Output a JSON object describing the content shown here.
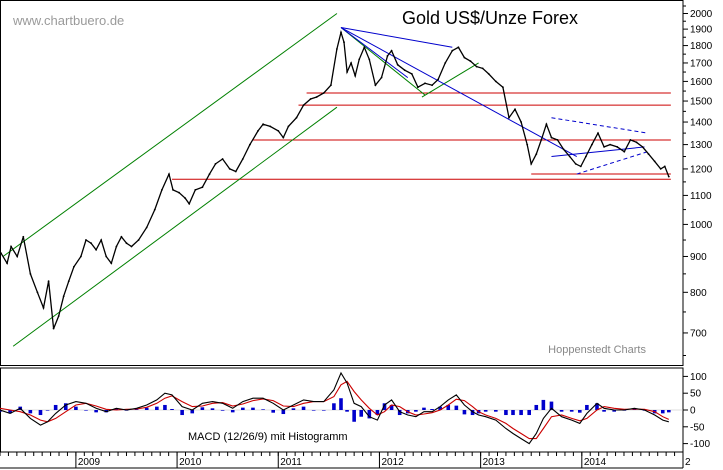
{
  "chart_data": {
    "type": "line",
    "title": "Gold US$/Unze Forex",
    "watermark": "www.chartbuero.de",
    "source": "Hoppenstedt Charts",
    "y_axis": {
      "ticks": [
        700,
        800,
        900,
        1000,
        1100,
        1200,
        1300,
        1400,
        1500,
        1600,
        1700,
        1800,
        1900,
        2000
      ],
      "ylim": [
        630,
        2050
      ],
      "scale": "log"
    },
    "x_axis": {
      "labels": [
        "2009",
        "2010",
        "2011",
        "2012",
        "2013",
        "2014",
        "2"
      ],
      "xlim": [
        2008.25,
        2015.0
      ]
    },
    "price_series": {
      "name": "Gold US$/oz",
      "color": "#000000",
      "points": [
        [
          2008.26,
          910
        ],
        [
          2008.32,
          880
        ],
        [
          2008.36,
          930
        ],
        [
          2008.42,
          900
        ],
        [
          2008.48,
          960
        ],
        [
          2008.55,
          850
        ],
        [
          2008.62,
          800
        ],
        [
          2008.68,
          760
        ],
        [
          2008.73,
          830
        ],
        [
          2008.78,
          710
        ],
        [
          2008.83,
          740
        ],
        [
          2008.88,
          790
        ],
        [
          2008.93,
          830
        ],
        [
          2008.98,
          870
        ],
        [
          2009.05,
          900
        ],
        [
          2009.1,
          950
        ],
        [
          2009.15,
          940
        ],
        [
          2009.2,
          920
        ],
        [
          2009.25,
          950
        ],
        [
          2009.3,
          900
        ],
        [
          2009.35,
          880
        ],
        [
          2009.4,
          930
        ],
        [
          2009.45,
          960
        ],
        [
          2009.5,
          940
        ],
        [
          2009.55,
          930
        ],
        [
          2009.62,
          950
        ],
        [
          2009.7,
          990
        ],
        [
          2009.78,
          1050
        ],
        [
          2009.85,
          1120
        ],
        [
          2009.92,
          1180
        ],
        [
          2009.96,
          1120
        ],
        [
          2010.02,
          1110
        ],
        [
          2010.08,
          1090
        ],
        [
          2010.12,
          1070
        ],
        [
          2010.18,
          1120
        ],
        [
          2010.25,
          1130
        ],
        [
          2010.32,
          1180
        ],
        [
          2010.38,
          1220
        ],
        [
          2010.45,
          1240
        ],
        [
          2010.52,
          1200
        ],
        [
          2010.58,
          1190
        ],
        [
          2010.65,
          1240
        ],
        [
          2010.72,
          1300
        ],
        [
          2010.8,
          1360
        ],
        [
          2010.85,
          1390
        ],
        [
          2010.92,
          1380
        ],
        [
          2011.0,
          1360
        ],
        [
          2011.05,
          1330
        ],
        [
          2011.1,
          1380
        ],
        [
          2011.18,
          1420
        ],
        [
          2011.25,
          1480
        ],
        [
          2011.32,
          1510
        ],
        [
          2011.38,
          1520
        ],
        [
          2011.45,
          1540
        ],
        [
          2011.52,
          1580
        ],
        [
          2011.58,
          1780
        ],
        [
          2011.62,
          1880
        ],
        [
          2011.65,
          1820
        ],
        [
          2011.68,
          1650
        ],
        [
          2011.72,
          1700
        ],
        [
          2011.76,
          1630
        ],
        [
          2011.8,
          1720
        ],
        [
          2011.85,
          1790
        ],
        [
          2011.9,
          1720
        ],
        [
          2011.96,
          1580
        ],
        [
          2012.02,
          1620
        ],
        [
          2012.08,
          1740
        ],
        [
          2012.12,
          1770
        ],
        [
          2012.18,
          1690
        ],
        [
          2012.25,
          1660
        ],
        [
          2012.32,
          1640
        ],
        [
          2012.38,
          1570
        ],
        [
          2012.45,
          1590
        ],
        [
          2012.52,
          1580
        ],
        [
          2012.58,
          1610
        ],
        [
          2012.65,
          1700
        ],
        [
          2012.72,
          1770
        ],
        [
          2012.78,
          1790
        ],
        [
          2012.84,
          1730
        ],
        [
          2012.9,
          1710
        ],
        [
          2012.96,
          1680
        ],
        [
          2013.02,
          1670
        ],
        [
          2013.08,
          1640
        ],
        [
          2013.15,
          1600
        ],
        [
          2013.22,
          1570
        ],
        [
          2013.28,
          1420
        ],
        [
          2013.34,
          1460
        ],
        [
          2013.4,
          1400
        ],
        [
          2013.46,
          1300
        ],
        [
          2013.5,
          1220
        ],
        [
          2013.55,
          1260
        ],
        [
          2013.6,
          1320
        ],
        [
          2013.65,
          1390
        ],
        [
          2013.7,
          1330
        ],
        [
          2013.76,
          1320
        ],
        [
          2013.82,
          1280
        ],
        [
          2013.88,
          1250
        ],
        [
          2013.94,
          1220
        ],
        [
          2013.99,
          1210
        ],
        [
          2014.04,
          1250
        ],
        [
          2014.1,
          1300
        ],
        [
          2014.16,
          1350
        ],
        [
          2014.22,
          1290
        ],
        [
          2014.28,
          1300
        ],
        [
          2014.35,
          1290
        ],
        [
          2014.42,
          1270
        ],
        [
          2014.48,
          1320
        ],
        [
          2014.54,
          1310
        ],
        [
          2014.6,
          1290
        ],
        [
          2014.66,
          1260
        ],
        [
          2014.72,
          1230
        ],
        [
          2014.78,
          1200
        ],
        [
          2014.82,
          1210
        ],
        [
          2014.86,
          1170
        ]
      ]
    },
    "annotations": {
      "channel_lines": [
        {
          "color": "#008000",
          "from": [
            2008.28,
            900
          ],
          "to": [
            2011.58,
            2000
          ]
        },
        {
          "color": "#008000",
          "from": [
            2008.38,
            670
          ],
          "to": [
            2011.58,
            1470
          ]
        },
        {
          "color": "#008000",
          "from": [
            2011.62,
            1910
          ],
          "to": [
            2012.45,
            1530
          ]
        },
        {
          "color": "#008000",
          "from": [
            2012.42,
            1520
          ],
          "to": [
            2012.98,
            1700
          ]
        },
        {
          "color": "#0000cc",
          "from": [
            2011.62,
            1910
          ],
          "to": [
            2012.72,
            1790
          ]
        },
        {
          "color": "#0000cc",
          "from": [
            2011.62,
            1910
          ],
          "to": [
            2012.28,
            1620
          ]
        },
        {
          "color": "#0000cc",
          "from": [
            2011.62,
            1910
          ],
          "to": [
            2013.95,
            1250
          ]
        },
        {
          "color": "#0000cc",
          "from": [
            2013.7,
            1250
          ],
          "to": [
            2014.62,
            1290
          ]
        }
      ],
      "dashed_lines": [
        {
          "color": "#0000cc",
          "from": [
            2013.7,
            1420
          ],
          "to": [
            2014.65,
            1350
          ]
        },
        {
          "color": "#0000cc",
          "from": [
            2013.95,
            1180
          ],
          "to": [
            2014.65,
            1270
          ]
        }
      ],
      "horizontal_levels": [
        {
          "value": 1540,
          "color": "#cc0000",
          "x_from": 2011.28,
          "x_to": 2014.88
        },
        {
          "value": 1480,
          "color": "#cc0000",
          "x_from": 2011.2,
          "x_to": 2014.88
        },
        {
          "value": 1320,
          "color": "#cc0000",
          "x_from": 2010.75,
          "x_to": 2014.88
        },
        {
          "value": 1180,
          "color": "#cc0000",
          "x_from": 2013.5,
          "x_to": 2014.88
        },
        {
          "value": 1160,
          "color": "#cc0000",
          "x_from": 2009.95,
          "x_to": 2014.88
        }
      ]
    },
    "macd_panel": {
      "label": "MACD (12/26/9) mit Histogramm",
      "y_ticks": [
        "100",
        "50",
        "0",
        "-50",
        "-100"
      ],
      "y_values": [
        100,
        50,
        0,
        -50,
        -100
      ],
      "ylim": [
        -125,
        125
      ],
      "macd_color": "#000000",
      "signal_color": "#cc0000",
      "hist_color": "#0000cc",
      "macd": [
        [
          2008.25,
          0
        ],
        [
          2008.35,
          -10
        ],
        [
          2008.45,
          5
        ],
        [
          2008.55,
          -25
        ],
        [
          2008.65,
          -45
        ],
        [
          2008.72,
          -35
        ],
        [
          2008.8,
          -10
        ],
        [
          2008.9,
          15
        ],
        [
          2009.0,
          25
        ],
        [
          2009.1,
          20
        ],
        [
          2009.2,
          5
        ],
        [
          2009.3,
          -5
        ],
        [
          2009.4,
          5
        ],
        [
          2009.5,
          0
        ],
        [
          2009.6,
          5
        ],
        [
          2009.7,
          15
        ],
        [
          2009.8,
          30
        ],
        [
          2009.88,
          50
        ],
        [
          2009.95,
          45
        ],
        [
          2010.05,
          10
        ],
        [
          2010.15,
          0
        ],
        [
          2010.25,
          20
        ],
        [
          2010.35,
          25
        ],
        [
          2010.45,
          20
        ],
        [
          2010.55,
          5
        ],
        [
          2010.65,
          25
        ],
        [
          2010.75,
          35
        ],
        [
          2010.85,
          35
        ],
        [
          2010.95,
          20
        ],
        [
          2011.05,
          0
        ],
        [
          2011.15,
          15
        ],
        [
          2011.25,
          30
        ],
        [
          2011.35,
          25
        ],
        [
          2011.45,
          25
        ],
        [
          2011.55,
          60
        ],
        [
          2011.62,
          110
        ],
        [
          2011.68,
          80
        ],
        [
          2011.75,
          20
        ],
        [
          2011.82,
          10
        ],
        [
          2011.9,
          -20
        ],
        [
          2011.98,
          -30
        ],
        [
          2012.05,
          15
        ],
        [
          2012.12,
          30
        ],
        [
          2012.2,
          -5
        ],
        [
          2012.28,
          -15
        ],
        [
          2012.36,
          -20
        ],
        [
          2012.44,
          -5
        ],
        [
          2012.52,
          -5
        ],
        [
          2012.6,
          10
        ],
        [
          2012.68,
          30
        ],
        [
          2012.76,
          45
        ],
        [
          2012.84,
          15
        ],
        [
          2012.92,
          -5
        ],
        [
          2012.98,
          -15
        ],
        [
          2013.05,
          -20
        ],
        [
          2013.15,
          -30
        ],
        [
          2013.25,
          -55
        ],
        [
          2013.32,
          -70
        ],
        [
          2013.4,
          -85
        ],
        [
          2013.48,
          -100
        ],
        [
          2013.55,
          -70
        ],
        [
          2013.62,
          -25
        ],
        [
          2013.7,
          5
        ],
        [
          2013.8,
          -20
        ],
        [
          2013.9,
          -30
        ],
        [
          2013.98,
          -40
        ],
        [
          2014.05,
          -10
        ],
        [
          2014.15,
          20
        ],
        [
          2014.22,
          5
        ],
        [
          2014.32,
          0
        ],
        [
          2014.42,
          0
        ],
        [
          2014.52,
          5
        ],
        [
          2014.62,
          0
        ],
        [
          2014.72,
          -15
        ],
        [
          2014.8,
          -30
        ],
        [
          2014.86,
          -35
        ]
      ],
      "signal": [
        [
          2008.25,
          5
        ],
        [
          2008.35,
          0
        ],
        [
          2008.45,
          -5
        ],
        [
          2008.55,
          -15
        ],
        [
          2008.65,
          -30
        ],
        [
          2008.72,
          -35
        ],
        [
          2008.8,
          -25
        ],
        [
          2008.9,
          -5
        ],
        [
          2009.0,
          15
        ],
        [
          2009.1,
          20
        ],
        [
          2009.2,
          12
        ],
        [
          2009.3,
          2
        ],
        [
          2009.4,
          0
        ],
        [
          2009.5,
          2
        ],
        [
          2009.6,
          3
        ],
        [
          2009.7,
          8
        ],
        [
          2009.8,
          20
        ],
        [
          2009.88,
          35
        ],
        [
          2009.95,
          42
        ],
        [
          2010.05,
          25
        ],
        [
          2010.15,
          10
        ],
        [
          2010.25,
          12
        ],
        [
          2010.35,
          20
        ],
        [
          2010.45,
          22
        ],
        [
          2010.55,
          12
        ],
        [
          2010.65,
          18
        ],
        [
          2010.75,
          28
        ],
        [
          2010.85,
          33
        ],
        [
          2010.95,
          28
        ],
        [
          2011.05,
          12
        ],
        [
          2011.15,
          10
        ],
        [
          2011.25,
          20
        ],
        [
          2011.35,
          25
        ],
        [
          2011.45,
          25
        ],
        [
          2011.55,
          40
        ],
        [
          2011.62,
          75
        ],
        [
          2011.68,
          85
        ],
        [
          2011.75,
          55
        ],
        [
          2011.82,
          30
        ],
        [
          2011.9,
          5
        ],
        [
          2011.98,
          -15
        ],
        [
          2012.05,
          -5
        ],
        [
          2012.12,
          15
        ],
        [
          2012.2,
          10
        ],
        [
          2012.28,
          -5
        ],
        [
          2012.36,
          -15
        ],
        [
          2012.44,
          -12
        ],
        [
          2012.52,
          -8
        ],
        [
          2012.6,
          0
        ],
        [
          2012.68,
          15
        ],
        [
          2012.76,
          32
        ],
        [
          2012.84,
          28
        ],
        [
          2012.92,
          10
        ],
        [
          2012.98,
          -5
        ],
        [
          2013.05,
          -15
        ],
        [
          2013.15,
          -25
        ],
        [
          2013.25,
          -40
        ],
        [
          2013.32,
          -55
        ],
        [
          2013.4,
          -70
        ],
        [
          2013.48,
          -85
        ],
        [
          2013.55,
          -85
        ],
        [
          2013.62,
          -55
        ],
        [
          2013.7,
          -20
        ],
        [
          2013.8,
          -15
        ],
        [
          2013.9,
          -25
        ],
        [
          2013.98,
          -32
        ],
        [
          2014.05,
          -25
        ],
        [
          2014.15,
          0
        ],
        [
          2014.22,
          10
        ],
        [
          2014.32,
          5
        ],
        [
          2014.42,
          2
        ],
        [
          2014.52,
          3
        ],
        [
          2014.62,
          2
        ],
        [
          2014.72,
          -5
        ],
        [
          2014.8,
          -20
        ],
        [
          2014.86,
          -28
        ]
      ]
    }
  }
}
